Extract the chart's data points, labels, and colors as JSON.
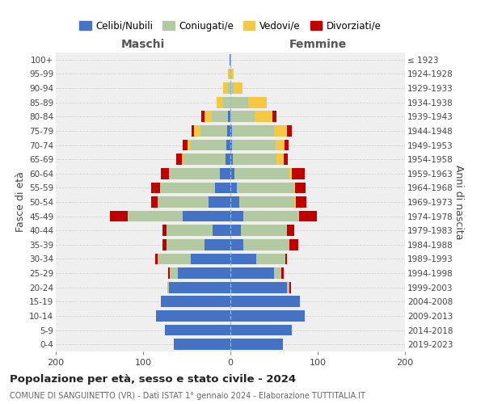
{
  "age_groups": [
    "0-4",
    "5-9",
    "10-14",
    "15-19",
    "20-24",
    "25-29",
    "30-34",
    "35-39",
    "40-44",
    "45-49",
    "50-54",
    "55-59",
    "60-64",
    "65-69",
    "70-74",
    "75-79",
    "80-84",
    "85-89",
    "90-94",
    "95-99",
    "100+"
  ],
  "birth_years": [
    "2019-2023",
    "2014-2018",
    "2009-2013",
    "2004-2008",
    "1999-2003",
    "1994-1998",
    "1989-1993",
    "1984-1988",
    "1979-1983",
    "1974-1978",
    "1969-1973",
    "1964-1968",
    "1959-1963",
    "1954-1958",
    "1949-1953",
    "1944-1948",
    "1939-1943",
    "1934-1938",
    "1929-1933",
    "1924-1928",
    "≤ 1923"
  ],
  "maschi": {
    "celibi": [
      65,
      75,
      85,
      80,
      70,
      60,
      45,
      30,
      20,
      55,
      25,
      18,
      12,
      6,
      5,
      4,
      3,
      0,
      0,
      0,
      1
    ],
    "coniugati": [
      0,
      0,
      0,
      0,
      2,
      9,
      38,
      43,
      53,
      63,
      58,
      63,
      58,
      48,
      40,
      30,
      18,
      8,
      3,
      1,
      0
    ],
    "vedovi": [
      0,
      0,
      0,
      0,
      0,
      0,
      0,
      0,
      0,
      0,
      0,
      0,
      0,
      2,
      4,
      8,
      9,
      8,
      5,
      2,
      0
    ],
    "divorziati": [
      0,
      0,
      0,
      0,
      0,
      2,
      3,
      5,
      5,
      20,
      8,
      10,
      10,
      6,
      6,
      2,
      3,
      0,
      0,
      0,
      0
    ]
  },
  "femmine": {
    "nubili": [
      60,
      70,
      85,
      80,
      65,
      50,
      30,
      15,
      12,
      15,
      10,
      7,
      5,
      3,
      2,
      2,
      0,
      0,
      0,
      0,
      0
    ],
    "coniugate": [
      0,
      0,
      0,
      0,
      3,
      8,
      33,
      53,
      53,
      63,
      63,
      66,
      63,
      50,
      50,
      48,
      28,
      20,
      4,
      0,
      0
    ],
    "vedove": [
      0,
      0,
      0,
      0,
      0,
      0,
      0,
      0,
      0,
      1,
      2,
      1,
      2,
      8,
      10,
      15,
      20,
      22,
      10,
      4,
      1
    ],
    "divorziate": [
      0,
      0,
      0,
      0,
      1,
      3,
      2,
      10,
      8,
      20,
      12,
      12,
      15,
      5,
      5,
      5,
      5,
      0,
      0,
      0,
      0
    ]
  },
  "colors": {
    "celibi": "#4472c4",
    "coniugati": "#b3c9a1",
    "vedovi": "#f5c842",
    "divorziati": "#c00000"
  },
  "xlim": [
    -200,
    200
  ],
  "title": "Popolazione per età, sesso e stato civile - 2024",
  "subtitle": "COMUNE DI SANGUINETTO (VR) - Dati ISTAT 1° gennaio 2024 - Elaborazione TUTTITALIA.IT",
  "ylabel_left": "Fasce di età",
  "ylabel_right": "Anni di nascita",
  "xlabel_maschi": "Maschi",
  "xlabel_femmine": "Femmine",
  "legend_labels": [
    "Celibi/Nubili",
    "Coniugati/e",
    "Vedovi/e",
    "Divorziati/e"
  ],
  "background_color": "#ffffff",
  "plot_bg_color": "#efefef",
  "grid_color": "#cccccc"
}
